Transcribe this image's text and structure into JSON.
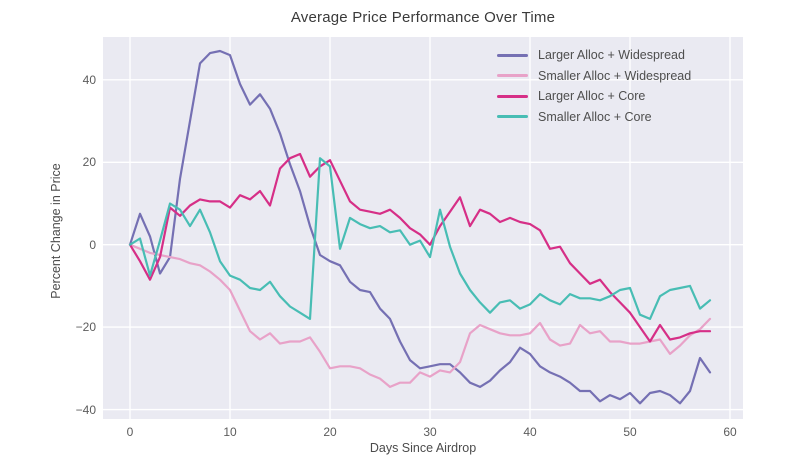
{
  "chart_data": {
    "type": "line",
    "title": "Average Price Performance Over Time",
    "xlabel": "Days Since Airdrop",
    "ylabel": "Percent Change in Price",
    "xlim": [
      -2.7,
      61.3
    ],
    "ylim": [
      -42.3,
      50.4
    ],
    "x_ticks": [
      0,
      10,
      20,
      30,
      40,
      50,
      60
    ],
    "x_tick_labels": [
      "0",
      "10",
      "20",
      "30",
      "40",
      "50",
      "60"
    ],
    "y_ticks": [
      -40,
      -20,
      0,
      20,
      40
    ],
    "y_tick_labels": [
      "−40",
      "−20",
      "0",
      "20",
      "40"
    ],
    "grid": true,
    "plot_bg_color": "#eaeaf2",
    "grid_color": "#ffffff",
    "legend_position": "upper right",
    "x": [
      0,
      1,
      2,
      3,
      4,
      5,
      6,
      7,
      8,
      9,
      10,
      11,
      12,
      13,
      14,
      15,
      16,
      17,
      18,
      19,
      20,
      21,
      22,
      23,
      24,
      25,
      26,
      27,
      28,
      29,
      30,
      31,
      32,
      33,
      34,
      35,
      36,
      37,
      38,
      39,
      40,
      41,
      42,
      43,
      44,
      45,
      46,
      47,
      48,
      49,
      50,
      51,
      52,
      53,
      54,
      55,
      56,
      57,
      58
    ],
    "series": [
      {
        "name": "Larger Alloc + Widespread",
        "color": "#7570b3",
        "values": [
          0,
          7.5,
          2,
          -7,
          -3,
          16,
          30,
          44,
          46.5,
          47,
          46,
          39,
          34,
          36.5,
          33,
          27,
          19.5,
          13,
          4.5,
          -2.5,
          -4,
          -5,
          -9,
          -11,
          -11.5,
          -15.5,
          -18,
          -23.5,
          -28,
          -30,
          -29.5,
          -29,
          -29,
          -31,
          -33.5,
          -34.5,
          -33,
          -30.5,
          -28.5,
          -25,
          -26.5,
          -29.5,
          -31,
          -32,
          -33.5,
          -35.5,
          -35.5,
          -38,
          -36.5,
          -37.5,
          -36,
          -38.5,
          -36,
          -35.5,
          -36.5,
          -38.5,
          -35.5,
          -27.5,
          -31
        ]
      },
      {
        "name": "Smaller Alloc + Widespread",
        "color": "#e8a2c8",
        "values": [
          0,
          -1,
          -2,
          -2.5,
          -3,
          -3.5,
          -4.5,
          -5,
          -6.5,
          -8.5,
          -11,
          -16,
          -21,
          -23,
          -21.5,
          -24,
          -23.5,
          -23.5,
          -22.5,
          -26,
          -30,
          -29.5,
          -29.5,
          -30,
          -31.5,
          -32.5,
          -34.5,
          -33.5,
          -33.5,
          -31,
          -32,
          -30.5,
          -31,
          -28.5,
          -21.5,
          -19.5,
          -20.5,
          -21.5,
          -22,
          -22,
          -21.5,
          -19,
          -23,
          -24.5,
          -24,
          -19.5,
          -21.5,
          -21,
          -23.5,
          -23.5,
          -24,
          -24,
          -23.5,
          -23,
          -26.5,
          -24.5,
          -22,
          -20.5,
          -18
        ]
      },
      {
        "name": "Larger Alloc + Core",
        "color": "#d62f87",
        "values": [
          0,
          -4,
          -8.5,
          -3,
          9,
          7,
          9.5,
          11,
          10.5,
          10.5,
          9,
          12,
          11,
          13,
          9.5,
          18.5,
          21,
          22,
          16.5,
          19,
          20.5,
          15.5,
          10.5,
          8.5,
          8,
          7.5,
          8.5,
          6.5,
          4,
          2.5,
          0,
          4.5,
          8,
          11.5,
          4.5,
          8.5,
          7.5,
          5.5,
          6.5,
          5.5,
          5,
          3.5,
          -1,
          -0.5,
          -4.5,
          -7,
          -9.5,
          -8.5,
          -11.5,
          -14,
          -16.5,
          -20,
          -23.5,
          -19.5,
          -23,
          -22.5,
          -21.5,
          -21,
          -21
        ]
      },
      {
        "name": "Smaller Alloc + Core",
        "color": "#48bdb4",
        "values": [
          0,
          1.5,
          -7.5,
          1,
          10,
          8.5,
          4.5,
          8.5,
          3,
          -4,
          -7.5,
          -8.5,
          -10.5,
          -11,
          -9,
          -12.5,
          -15,
          -16.5,
          -18,
          21,
          19,
          -1,
          6.5,
          5,
          4,
          4.5,
          3,
          3.5,
          0,
          1,
          -3,
          8.5,
          -0.5,
          -7,
          -11,
          -14,
          -16.5,
          -14,
          -13.5,
          -15.5,
          -14.5,
          -12,
          -13.5,
          -14.5,
          -12,
          -13,
          -13,
          -13.5,
          -12.5,
          -11,
          -10.5,
          -17,
          -18,
          -12.5,
          -11,
          -10.5,
          -10,
          -15.5,
          -13.5
        ]
      }
    ]
  }
}
